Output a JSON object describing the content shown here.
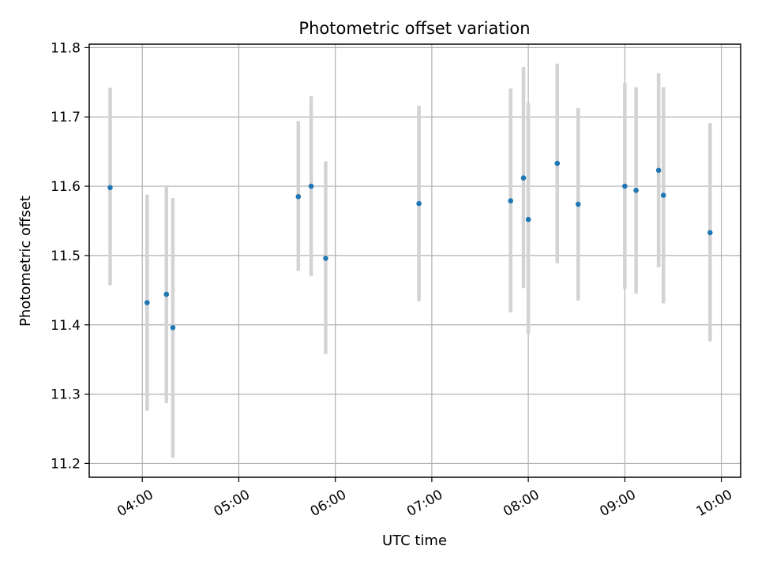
{
  "chart_data": {
    "type": "scatter",
    "title": "Photometric offset variation",
    "xlabel": "UTC time",
    "ylabel": "Photometric offset",
    "x_tick_labels": [
      "04:00",
      "05:00",
      "06:00",
      "07:00",
      "08:00",
      "09:00",
      "10:00"
    ],
    "y_tick_labels": [
      "11.2",
      "11.3",
      "11.4",
      "11.5",
      "11.6",
      "11.7",
      "11.8"
    ],
    "ylim": [
      11.18,
      11.805
    ],
    "xlim": [
      "03:27",
      "10:12"
    ],
    "grid": true,
    "colors": {
      "point": "#1f77b4",
      "errorbar": "#d3d3d3",
      "grid": "#b0b0b0"
    },
    "points": [
      {
        "x": "03:40",
        "y": 11.598,
        "ylow": 11.457,
        "yhigh": 11.742
      },
      {
        "x": "04:03",
        "y": 11.432,
        "ylow": 11.276,
        "yhigh": 11.588
      },
      {
        "x": "04:15",
        "y": 11.444,
        "ylow": 11.287,
        "yhigh": 11.6
      },
      {
        "x": "04:19",
        "y": 11.396,
        "ylow": 11.208,
        "yhigh": 11.583
      },
      {
        "x": "05:37",
        "y": 11.585,
        "ylow": 11.478,
        "yhigh": 11.694
      },
      {
        "x": "05:45",
        "y": 11.6,
        "ylow": 11.47,
        "yhigh": 11.73
      },
      {
        "x": "05:54",
        "y": 11.496,
        "ylow": 11.358,
        "yhigh": 11.636
      },
      {
        "x": "06:52",
        "y": 11.575,
        "ylow": 11.434,
        "yhigh": 11.716
      },
      {
        "x": "07:49",
        "y": 11.579,
        "ylow": 11.418,
        "yhigh": 11.741
      },
      {
        "x": "07:57",
        "y": 11.612,
        "ylow": 11.453,
        "yhigh": 11.772
      },
      {
        "x": "08:00",
        "y": 11.552,
        "ylow": 11.387,
        "yhigh": 11.72
      },
      {
        "x": "08:18",
        "y": 11.633,
        "ylow": 11.489,
        "yhigh": 11.777
      },
      {
        "x": "08:31",
        "y": 11.574,
        "ylow": 11.435,
        "yhigh": 11.713
      },
      {
        "x": "09:00",
        "y": 11.6,
        "ylow": 11.452,
        "yhigh": 11.749
      },
      {
        "x": "09:07",
        "y": 11.594,
        "ylow": 11.445,
        "yhigh": 11.743
      },
      {
        "x": "09:21",
        "y": 11.623,
        "ylow": 11.483,
        "yhigh": 11.763
      },
      {
        "x": "09:24",
        "y": 11.587,
        "ylow": 11.431,
        "yhigh": 11.743
      },
      {
        "x": "09:53",
        "y": 11.533,
        "ylow": 11.376,
        "yhigh": 11.691
      }
    ]
  }
}
